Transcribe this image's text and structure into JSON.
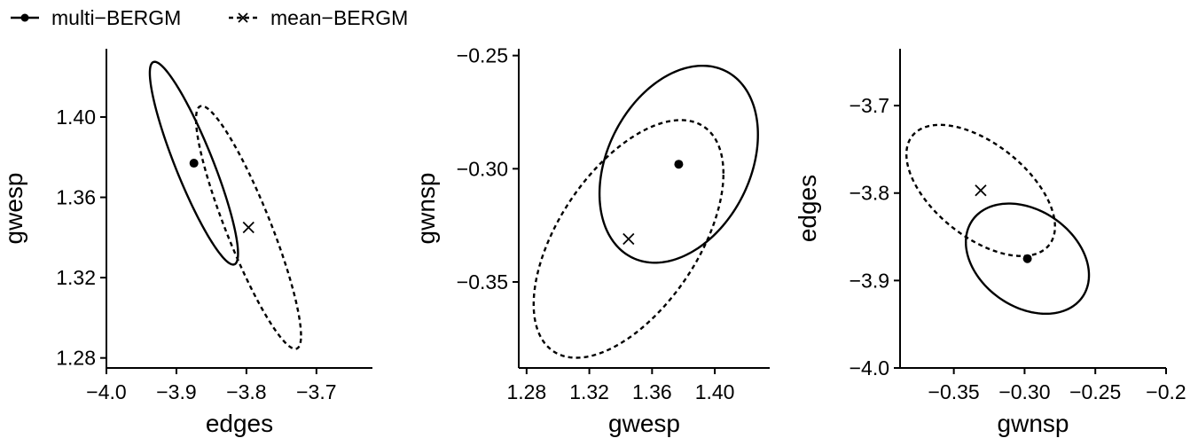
{
  "legend": {
    "position": "top-left",
    "items": [
      {
        "label": "multi−BERGM",
        "marker": "filled-circle",
        "line": "solid"
      },
      {
        "label": "mean−BERGM",
        "marker": "cross",
        "line": "dashed"
      }
    ]
  },
  "chart_data": [
    {
      "type": "scatter",
      "xlabel": "edges",
      "ylabel": "gwesp",
      "xlim": [
        -4.0,
        -3.62
      ],
      "ylim": [
        1.275,
        1.434
      ],
      "xticks": [
        -4.0,
        -3.9,
        -3.8,
        -3.7
      ],
      "xtick_labels": [
        "−4.0",
        "−3.9",
        "−3.8",
        "−3.7"
      ],
      "yticks": [
        1.28,
        1.32,
        1.36,
        1.4
      ],
      "ytick_labels": [
        "1.28",
        "1.32",
        "1.36",
        "1.40"
      ],
      "grid": false,
      "points": [
        {
          "series": "multi−BERGM",
          "x": -3.875,
          "y": 1.377
        },
        {
          "series": "mean−BERGM",
          "x": -3.797,
          "y": 1.345
        }
      ],
      "ellipses": [
        {
          "series": "multi−BERGM",
          "cx": -3.875,
          "cy": 1.377,
          "rx": 0.063,
          "ry": 0.0505,
          "rho": -0.89
        },
        {
          "series": "mean−BERGM",
          "cx": -3.797,
          "cy": 1.345,
          "rx": 0.075,
          "ry": 0.0605,
          "rho": -0.89
        }
      ]
    },
    {
      "type": "scatter",
      "xlabel": "gwesp",
      "ylabel": "gwnsp",
      "xlim": [
        1.275,
        1.435
      ],
      "ylim": [
        -0.388,
        -0.247
      ],
      "xticks": [
        1.28,
        1.32,
        1.36,
        1.4
      ],
      "xtick_labels": [
        "1.28",
        "1.32",
        "1.36",
        "1.40"
      ],
      "yticks": [
        -0.25,
        -0.3,
        -0.35
      ],
      "ytick_labels": [
        "−0.25",
        "−0.30",
        "−0.35"
      ],
      "grid": false,
      "points": [
        {
          "series": "multi−BERGM",
          "x": 1.377,
          "y": -0.298
        },
        {
          "series": "mean−BERGM",
          "x": 1.345,
          "y": -0.331
        }
      ],
      "ellipses": [
        {
          "series": "multi−BERGM",
          "cx": 1.377,
          "cy": -0.298,
          "rx": 0.0505,
          "ry": 0.0435,
          "rho": 0.3
        },
        {
          "series": "mean−BERGM",
          "cx": 1.345,
          "cy": -0.331,
          "rx": 0.0605,
          "ry": 0.0525,
          "rho": 0.55
        }
      ]
    },
    {
      "type": "scatter",
      "xlabel": "gwnsp",
      "ylabel": "edges",
      "xlim": [
        -0.388,
        -0.2
      ],
      "ylim": [
        -4.0,
        -3.635
      ],
      "xticks": [
        -0.35,
        -0.3,
        -0.25,
        -0.2
      ],
      "xtick_labels": [
        "−0.35",
        "−0.30",
        "−0.25",
        "−0.2"
      ],
      "yticks": [
        -3.7,
        -3.8,
        -3.9,
        -4.0
      ],
      "ytick_labels": [
        "−3.7",
        "−3.8",
        "−3.9",
        "−4.0"
      ],
      "grid": false,
      "points": [
        {
          "series": "multi−BERGM",
          "x": -0.298,
          "y": -3.875
        },
        {
          "series": "mean−BERGM",
          "x": -0.331,
          "y": -3.797
        }
      ],
      "ellipses": [
        {
          "series": "multi−BERGM",
          "cx": -0.298,
          "cy": -3.875,
          "rx": 0.0435,
          "ry": 0.063,
          "rho": -0.3
        },
        {
          "series": "mean−BERGM",
          "cx": -0.331,
          "cy": -3.797,
          "rx": 0.0525,
          "ry": 0.075,
          "rho": -0.55
        }
      ]
    }
  ]
}
